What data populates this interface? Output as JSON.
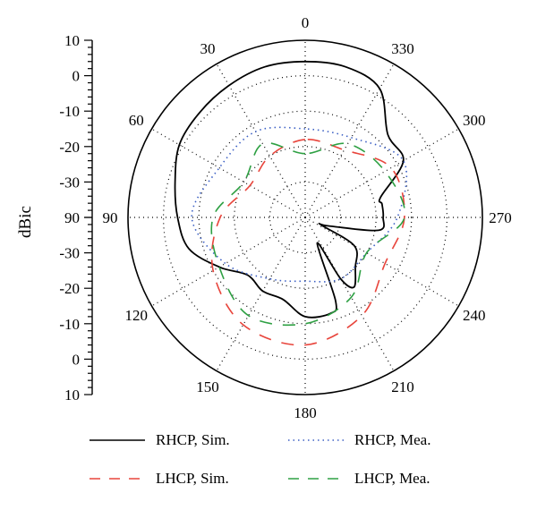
{
  "chart_data": {
    "type": "polar-line",
    "ylabel": "dBic",
    "radial_ticks": [
      "10",
      "0",
      "-10",
      "-20",
      "-30"
    ],
    "radial_range_dBic": [
      -40,
      10
    ],
    "center_label": "90",
    "angle_direction": "counterclockwise",
    "zero_angle_position": "top",
    "angle_labels": [
      "0",
      "30",
      "60",
      "90",
      "120",
      "150",
      "180",
      "210",
      "240",
      "270",
      "300",
      "330"
    ],
    "grid": true,
    "legend_position": "bottom",
    "legend": [
      {
        "key": "rhcp_sim",
        "label": "RHCP, Sim."
      },
      {
        "key": "rhcp_mea",
        "label": "RHCP, Mea."
      },
      {
        "key": "lhcp_sim",
        "label": "LHCP, Sim."
      },
      {
        "key": "lhcp_mea",
        "label": "LHCP, Mea."
      }
    ],
    "series": [
      {
        "name": "RHCP, Sim.",
        "color": "#000000",
        "dash": "solid",
        "angles": [
          0,
          15,
          30,
          45,
          60,
          75,
          90,
          105,
          120,
          135,
          150,
          165,
          180,
          195,
          200,
          205,
          210,
          215,
          225,
          240,
          245,
          250,
          260,
          270,
          280,
          285,
          300,
          315,
          330,
          345
        ],
        "values": [
          4,
          4,
          3,
          2,
          1,
          -2,
          -4,
          -6,
          -12,
          -17,
          -16,
          -16,
          -12,
          -12,
          -15,
          -32,
          -20,
          -16,
          -20,
          -24,
          -35,
          -33,
          -19,
          -18,
          -18,
          -18,
          -8,
          -7,
          2,
          4
        ]
      },
      {
        "name": "RHCP, Mea.",
        "color": "#3b5fc4",
        "dash": "dotted",
        "angles": [
          0,
          30,
          60,
          90,
          120,
          150,
          180,
          210,
          240,
          270,
          300,
          330
        ],
        "values": [
          -15,
          -12,
          -12,
          -8,
          -14,
          -20,
          -22,
          -20,
          -20,
          -14,
          -8,
          -14
        ]
      },
      {
        "name": "LHCP, Sim.",
        "color": "#e8453c",
        "dash": "dashed",
        "angles": [
          0,
          30,
          60,
          90,
          120,
          150,
          180,
          210,
          240,
          270,
          300,
          330
        ],
        "values": [
          -18,
          -20,
          -22,
          -16,
          -10,
          -5,
          -4,
          -8,
          -14,
          -12,
          -12,
          -18
        ]
      },
      {
        "name": "LHCP, Mea.",
        "color": "#2ea043",
        "dash": "dashed",
        "angles": [
          0,
          30,
          60,
          90,
          120,
          150,
          180,
          210,
          240,
          270,
          300,
          330
        ],
        "values": [
          -22,
          -16,
          -20,
          -14,
          -12,
          -8,
          -10,
          -14,
          -20,
          -12,
          -14,
          -16
        ]
      }
    ]
  }
}
